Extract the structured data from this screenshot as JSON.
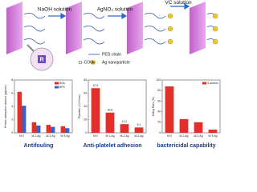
{
  "diagram": {
    "steps": [
      "NaOH solution",
      "AgNO₃ solution",
      "VC solution"
    ],
    "legend": [
      "PEG chain",
      "Ag nanoparticle",
      "-COO⁻"
    ],
    "ag_tag": "Ag",
    "core_tag": "R"
  },
  "chart_data": [
    {
      "type": "bar",
      "title": "Antifouling",
      "ylabel": "Protein adsorption amount (μg/cm²)",
      "categories": [
        "M-0",
        "M-1-Ag",
        "M-2-Ag",
        "M-3-Ag"
      ],
      "series": [
        {
          "name": "BSA",
          "color": "#e0302a",
          "values": [
            6.2,
            1.6,
            1.2,
            1.0
          ]
        },
        {
          "name": "BPS",
          "color": "#3a5fcd",
          "values": [
            4.1,
            1.1,
            0.9,
            0.7
          ]
        }
      ],
      "ylim": [
        0,
        8
      ],
      "yticks": [
        0,
        2,
        4,
        6,
        8
      ]
    },
    {
      "type": "bar",
      "title": "Anti-platelet adhesion",
      "ylabel": "Platelets (×10⁴/cm²)",
      "categories": [
        "M-0",
        "M-1-Ag",
        "M-2-Ag",
        "M-3-Ag"
      ],
      "values": [
        67.6,
        30.6,
        13.1,
        8.1
      ],
      "color": "#e0302a",
      "show_values": true,
      "ylim": [
        0,
        80
      ],
      "yticks": [
        0,
        20,
        40,
        60,
        80
      ]
    },
    {
      "type": "bar",
      "title": "bactericidal capability",
      "ylabel": "Killing Ratio (%)",
      "categories": [
        "M-0",
        "M-1-Ag",
        "M-2-Ag",
        "M-3-Ag"
      ],
      "series": [
        {
          "name": "S.aureus",
          "color": "#e0302a",
          "values": [
            88,
            26,
            20,
            6
          ]
        }
      ],
      "ylim": [
        0,
        100
      ],
      "yticks": [
        0,
        20,
        40,
        60,
        80,
        100
      ]
    }
  ]
}
